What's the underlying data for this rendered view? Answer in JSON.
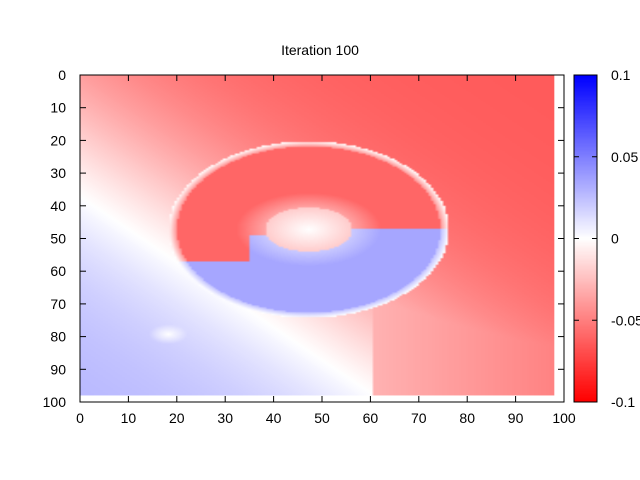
{
  "chart_data": {
    "type": "heatmap",
    "title": "Iteration 100",
    "xlabel": "",
    "ylabel": "",
    "xlim": [
      0,
      100
    ],
    "ylim": [
      0,
      100
    ],
    "y_axis_inverted": true,
    "x_ticks": [
      "0",
      "10",
      "20",
      "30",
      "40",
      "50",
      "60",
      "70",
      "80",
      "90",
      "100"
    ],
    "y_ticks": [
      "0",
      "10",
      "20",
      "30",
      "40",
      "50",
      "60",
      "70",
      "80",
      "90",
      "100"
    ],
    "data_extent": {
      "x": [
        0,
        98
      ],
      "y": [
        0,
        98
      ]
    },
    "colorbar": {
      "range": [
        -0.1,
        0.1
      ],
      "ticks": [
        "0.1",
        "0.05",
        "0",
        "-0.05",
        "-0.1"
      ],
      "colormap": {
        "low": "#ff0000",
        "mid": "#ffffff",
        "high": "#0000ff"
      }
    },
    "field_description_values": {
      "background_top_right": -0.065,
      "background_bottom_left": 0.03,
      "ring_center": [
        47,
        47
      ],
      "inner_radius": 9,
      "outer_ring_radius_x": 29,
      "outer_ring_radius_y": 27,
      "upper_half_annulus_value": -0.06,
      "lower_half_annulus_value": 0.035,
      "small_blob_center": [
        18,
        79
      ],
      "small_blob_value": 0.0
    }
  }
}
